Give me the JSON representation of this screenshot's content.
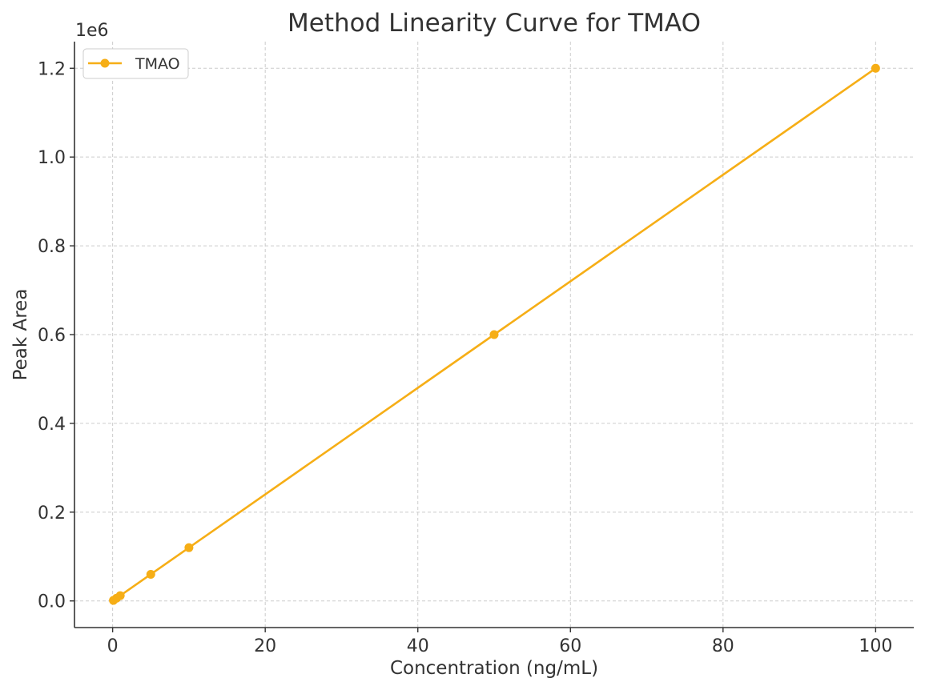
{
  "chart_data": {
    "type": "line",
    "title": "Method Linearity Curve for TMAO",
    "xlabel": "Concentration (ng/mL)",
    "ylabel": "Peak Area",
    "y_offset_label": "1e6",
    "xlim": [
      -5,
      105
    ],
    "ylim": [
      -60000,
      1260000
    ],
    "x_ticks": [
      0,
      20,
      40,
      60,
      80,
      100
    ],
    "x_tick_labels": [
      "0",
      "20",
      "40",
      "60",
      "80",
      "100"
    ],
    "y_ticks": [
      0,
      200000,
      400000,
      600000,
      800000,
      1000000,
      1200000
    ],
    "y_tick_labels": [
      "0.0",
      "0.2",
      "0.4",
      "0.6",
      "0.8",
      "1.0",
      "1.2"
    ],
    "grid": true,
    "legend_position": "top-left",
    "series": [
      {
        "name": "TMAO",
        "color": "#F6AE16",
        "marker": "circle",
        "x": [
          0.1,
          0.5,
          1,
          5,
          10,
          50,
          100
        ],
        "y": [
          1200,
          6000,
          12000,
          60000,
          120000,
          600000,
          1200000
        ]
      }
    ]
  }
}
